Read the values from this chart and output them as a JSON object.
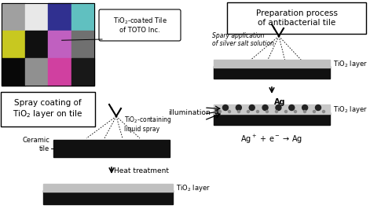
{
  "bg_color": "#ffffff",
  "fig_width": 4.71,
  "fig_height": 2.8,
  "dpi": 100,
  "left_box_text": "Spray coating of\nTiO$_2$ layer on tile",
  "right_box_text": "Preparation process\nof antibacterial tile",
  "tio2_callout_left": "TiO$_2$-coated Tile\nof TOTO Inc.",
  "spray_label": "TiO$_2$-containing\nliquid spray",
  "ceramic_label": "Ceramic\ntile",
  "heat_label": "Heat treatment",
  "tio2_layer_bottom": "TiO$_2$ layer",
  "spray_silver_label": "Spary application\nof silver salt solution",
  "tio2_layer_top_right": "TiO$_2$ layer",
  "tio2_layer_bottom_right": "TiO$_2$ layer",
  "illumination_label": "illumination",
  "ag_label": "Ag",
  "equation_label": "Ag$^+$ + e$^-$ → Ag",
  "tile_colors": [
    [
      "#a0a0a0",
      "#e8e8e8",
      "#303090",
      "#60c0c0"
    ],
    [
      "#c8c820",
      "#101010",
      "#c060c0",
      "#707070"
    ],
    [
      "#080808",
      "#909090",
      "#d040a0",
      "#181818"
    ]
  ]
}
